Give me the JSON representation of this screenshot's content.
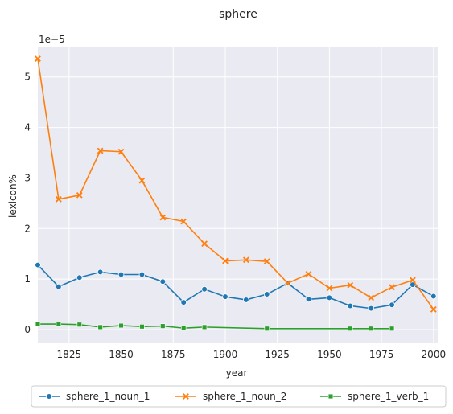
{
  "chart_data": {
    "type": "line",
    "title": "sphere",
    "xlabel": "year",
    "ylabel": "lexicon%",
    "y_multiplier_label": "1e−5",
    "xlim": [
      1810,
      2002
    ],
    "ylim": [
      -0.27,
      5.6
    ],
    "x_ticks": [
      1825,
      1850,
      1875,
      1900,
      1925,
      1950,
      1975,
      2000
    ],
    "y_ticks": [
      0,
      1,
      2,
      3,
      4,
      5
    ],
    "grid": true,
    "legend_position": "bottom-center",
    "series": [
      {
        "name": "sphere_1_noun_1",
        "color": "#1f77b4",
        "marker": "circle",
        "x": [
          1810,
          1820,
          1830,
          1840,
          1850,
          1860,
          1870,
          1880,
          1890,
          1900,
          1910,
          1920,
          1930,
          1940,
          1950,
          1960,
          1970,
          1980,
          1990,
          2000
        ],
        "y": [
          1.28,
          0.85,
          1.03,
          1.14,
          1.09,
          1.09,
          0.95,
          0.54,
          0.8,
          0.65,
          0.59,
          0.7,
          0.92,
          0.6,
          0.63,
          0.47,
          0.42,
          0.49,
          0.89,
          0.66
        ]
      },
      {
        "name": "sphere_1_noun_2",
        "color": "#ff7f0e",
        "marker": "x",
        "x": [
          1810,
          1820,
          1830,
          1840,
          1850,
          1860,
          1870,
          1880,
          1890,
          1900,
          1910,
          1920,
          1930,
          1940,
          1950,
          1960,
          1970,
          1980,
          1990,
          2000
        ],
        "y": [
          5.36,
          2.58,
          2.66,
          3.54,
          3.52,
          2.95,
          2.22,
          2.14,
          1.7,
          1.36,
          1.38,
          1.35,
          0.92,
          1.1,
          0.82,
          0.88,
          0.63,
          0.84,
          0.98,
          0.4
        ]
      },
      {
        "name": "sphere_1_verb_1",
        "color": "#2ca02c",
        "marker": "square",
        "x": [
          1810,
          1820,
          1830,
          1840,
          1850,
          1860,
          1870,
          1880,
          1890,
          1920,
          1960,
          1970,
          1980
        ],
        "y": [
          0.11,
          0.11,
          0.1,
          0.05,
          0.08,
          0.06,
          0.07,
          0.03,
          0.05,
          0.02,
          0.02,
          0.02,
          0.02
        ]
      }
    ]
  }
}
